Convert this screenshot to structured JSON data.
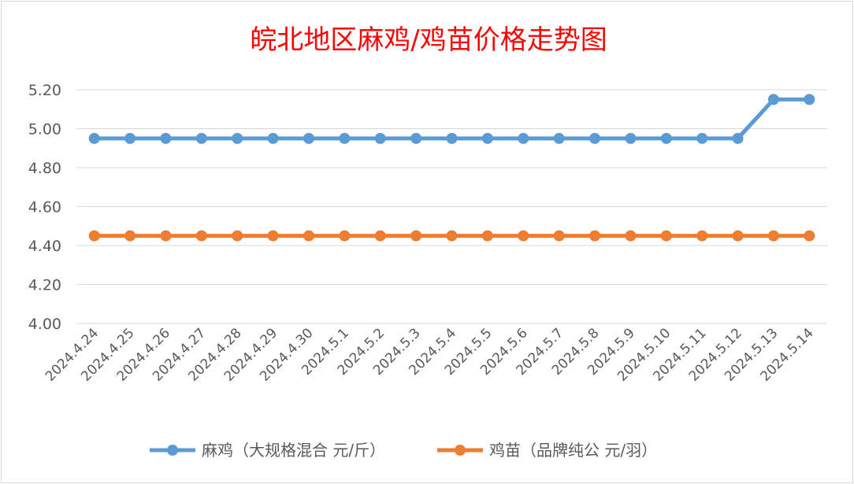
{
  "chart_data": {
    "type": "line",
    "title": "皖北地区麻鸡/鸡苗价格走势图",
    "categories": [
      "2024.4.24",
      "2024.4.25",
      "2024.4.26",
      "2024.4.27",
      "2024.4.28",
      "2024.4.29",
      "2024.4.30",
      "2024.5.1",
      "2024.5.2",
      "2024.5.3",
      "2024.5.4",
      "2024.5.5",
      "2024.5.6",
      "2024.5.7",
      "2024.5.8",
      "2024.5.9",
      "2024.5.10",
      "2024.5.11",
      "2024.5.12",
      "2024.5.13",
      "2024.5.14"
    ],
    "series": [
      {
        "name": "麻鸡（大规格混合 元/斤）",
        "color": "#5b9bd5",
        "values": [
          4.95,
          4.95,
          4.95,
          4.95,
          4.95,
          4.95,
          4.95,
          4.95,
          4.95,
          4.95,
          4.95,
          4.95,
          4.95,
          4.95,
          4.95,
          4.95,
          4.95,
          4.95,
          4.95,
          5.15,
          5.15
        ]
      },
      {
        "name": "鸡苗（品牌纯公 元/羽）",
        "color": "#ed7d31",
        "values": [
          4.45,
          4.45,
          4.45,
          4.45,
          4.45,
          4.45,
          4.45,
          4.45,
          4.45,
          4.45,
          4.45,
          4.45,
          4.45,
          4.45,
          4.45,
          4.45,
          4.45,
          4.45,
          4.45,
          4.45,
          4.45
        ]
      }
    ],
    "yticks": [
      "4.00",
      "4.20",
      "4.40",
      "4.60",
      "4.80",
      "5.00",
      "5.20"
    ],
    "ylim": [
      4.0,
      5.2
    ],
    "grid": true,
    "legend_position": "bottom"
  }
}
